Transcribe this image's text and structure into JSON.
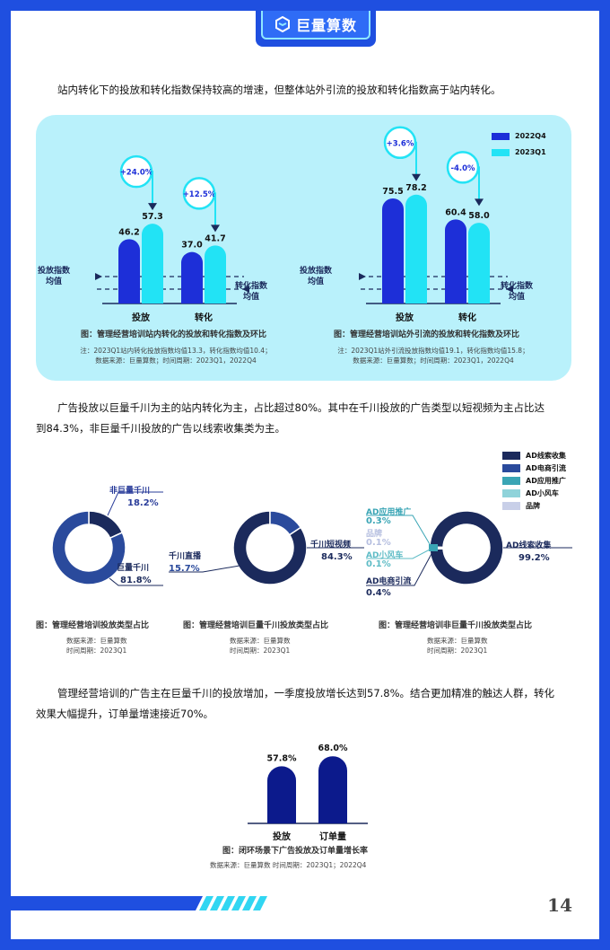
{
  "brand": {
    "name": "巨量算数",
    "primary": "#1f4fe0",
    "accent": "#2f6cf6"
  },
  "intro1": "站内转化下的投放和转化指数保持较高的增速，但整体站外引流的投放和转化指数高于站内转化。",
  "legend_top": [
    {
      "label": "2022Q4",
      "color": "#1d2fd8"
    },
    {
      "label": "2023Q1",
      "color": "#22e3f5"
    }
  ],
  "left_labels": {
    "invest_avg": "投放指数\n均值",
    "convert_avg": "转化指数\n均值"
  },
  "fig1": {
    "caption": "图：管理经营培训站内转化的投放和转化指数及环比",
    "note1": "注：2023Q1站内转化投放指数均值13.3，转化指数均值10.4；",
    "note2": "数据来源：巨量算数；时间周期：2023Q1，2022Q4"
  },
  "fig2": {
    "caption": "图：管理经营培训站外引流的投放和转化指数及环比",
    "note1": "注：2023Q1站外引流投放指数均值19.1，转化指数均值15.8；",
    "note2": "数据来源：巨量算数；时间周期：2023Q1，2022Q4"
  },
  "intro2_line1": "广告投放以巨量千川为主的站内转化为主，占比超过80%。其中在千川投放的广告类型以短视频为主占比达",
  "intro2_line2": "到84.3%，非巨量千川投放的广告以线索收集类为主。",
  "legend_ad": [
    {
      "label": "AD线索收集",
      "color": "#1b2a5c"
    },
    {
      "label": "AD电商引流",
      "color": "#2a4a9c"
    },
    {
      "label": "AD应用推广",
      "color": "#3aa5b5"
    },
    {
      "label": "AD小风车",
      "color": "#8fd3da"
    },
    {
      "label": "品牌",
      "color": "#c8cfe8"
    }
  ],
  "donut1": {
    "caption": "图：管理经营培训投放类型占比",
    "src": "数据来源：巨量算数",
    "period": "时间周期：2023Q1",
    "non_label": "非巨量千川",
    "non_value": "18.2%",
    "jl_label": "巨量千川",
    "jl_value": "81.8%"
  },
  "donut2": {
    "caption": "图：管理经营培训巨量千川投放类型占比",
    "src": "数据来源：巨量算数",
    "period": "时间周期：2023Q1",
    "live_label": "千川直播",
    "live_value": "15.7%",
    "short_label": "千川短视频",
    "short_value": "84.3%"
  },
  "donut3": {
    "caption": "图：管理经营培训非巨量千川投放类型占比",
    "src": "数据来源：巨量算数",
    "period": "时间周期：2023Q1",
    "app_label": "AD应用推广",
    "app_value": "0.3%",
    "brand_label": "品牌",
    "brand_value": "0.1%",
    "wind_label": "AD小风车",
    "wind_value": "0.1%",
    "ecom_label": "AD电商引流",
    "ecom_value": "0.4%",
    "lead_label": "AD线索收集",
    "lead_value": "99.2%"
  },
  "intro3_line1": "管理经营培训的广告主在巨量千川的投放增加，一季度投放增长达到57.8%。结合更加精准的触达人群，转化",
  "intro3_line2": "效果大幅提升，订单量增速接近70%。",
  "fig3": {
    "caption": "图：闭环场景下广告投放及订单量增长率",
    "note": "数据来源：巨量算数   时间周期：2023Q1；2022Q4"
  },
  "page_number": "14",
  "chart_data": [
    {
      "type": "bar",
      "title": "图：管理经营培训站内转化的投放和转化指数及环比",
      "categories": [
        "投放",
        "转化"
      ],
      "series": [
        {
          "name": "2022Q4",
          "values": [
            46.2,
            37.0
          ],
          "labels": [
            "46.2",
            "37.0"
          ]
        },
        {
          "name": "2023Q1",
          "values": [
            57.3,
            41.7
          ],
          "labels": [
            "57.3",
            "41.7"
          ]
        }
      ],
      "growth": [
        "+24.0%",
        "+12.5%"
      ],
      "ylim": [
        0,
        80
      ]
    },
    {
      "type": "bar",
      "title": "图：管理经营培训站外引流的投放和转化指数及环比",
      "categories": [
        "投放",
        "转化"
      ],
      "series": [
        {
          "name": "2022Q4",
          "values": [
            75.5,
            60.4
          ],
          "labels": [
            "75.5",
            "60.4"
          ]
        },
        {
          "name": "2023Q1",
          "values": [
            78.2,
            58.0
          ],
          "labels": [
            "78.2",
            "58.0"
          ]
        }
      ],
      "growth": [
        "+3.6%",
        "-4.0%"
      ],
      "ylim": [
        0,
        80
      ]
    },
    {
      "type": "pie",
      "title": "图：管理经营培训投放类型占比",
      "labels": [
        "巨量千川",
        "非巨量千川"
      ],
      "values": [
        81.8,
        18.2
      ]
    },
    {
      "type": "pie",
      "title": "图：管理经营培训巨量千川投放类型占比",
      "labels": [
        "千川短视频",
        "千川直播"
      ],
      "values": [
        84.3,
        15.7
      ]
    },
    {
      "type": "pie",
      "title": "图：管理经营培训非巨量千川投放类型占比",
      "labels": [
        "AD线索收集",
        "AD电商引流",
        "AD应用推广",
        "AD小风车",
        "品牌"
      ],
      "values": [
        99.2,
        0.4,
        0.3,
        0.1,
        0.1
      ]
    },
    {
      "type": "bar",
      "title": "图：闭环场景下广告投放及订单量增长率",
      "categories": [
        "投放",
        "订单量"
      ],
      "values": [
        57.8,
        68.0
      ],
      "labels": [
        "57.8%",
        "68.0%"
      ],
      "ylim": [
        0,
        80
      ]
    }
  ]
}
